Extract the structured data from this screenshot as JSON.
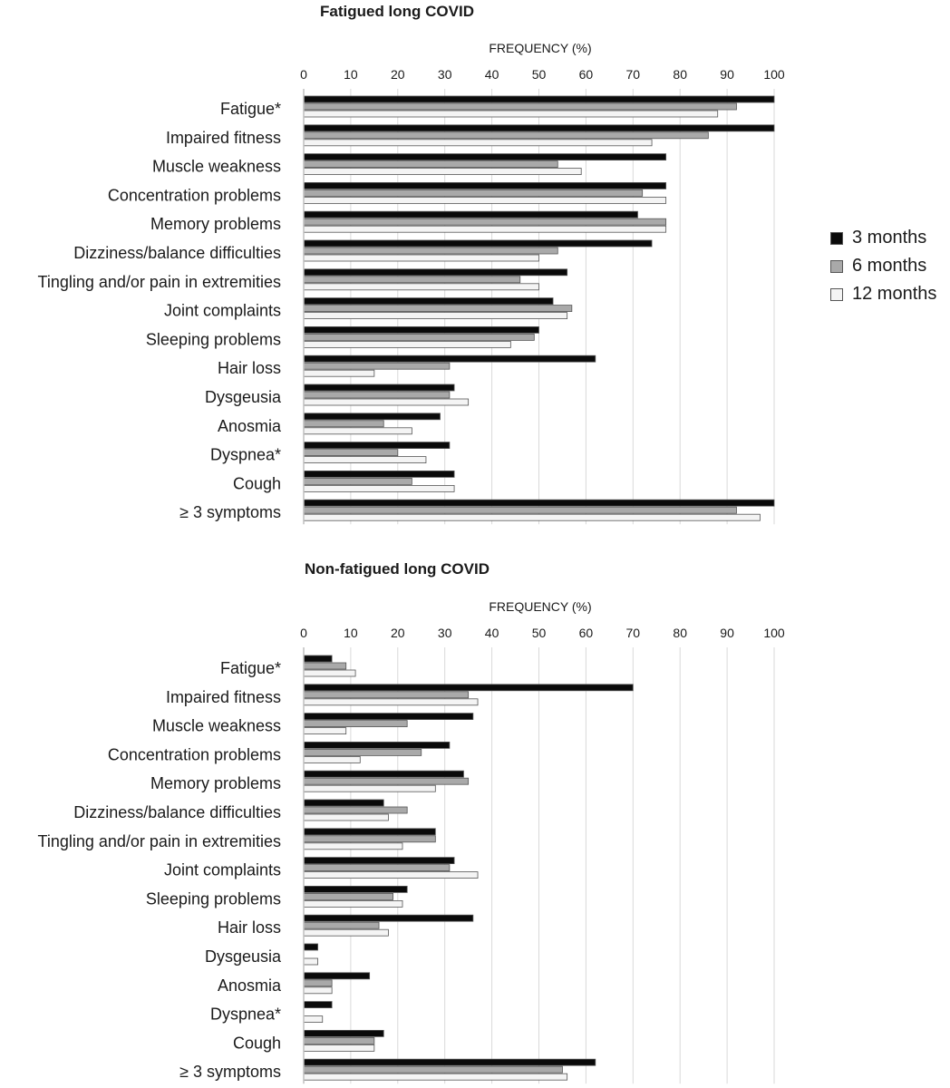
{
  "legend": {
    "entries": [
      "3 months",
      "6 months",
      "12 months"
    ]
  },
  "colors": {
    "3 months": "#0a0a0a",
    "6 months": "#a9a9a9",
    "12 months": "#f4f4f4",
    "bar_outline": "#555555",
    "grid": "#d9d9d9",
    "axis": "#bfbfbf",
    "text": "#1a1a1a"
  },
  "chart_data": [
    {
      "type": "bar",
      "orientation": "horizontal",
      "title": "Fatigued long COVID",
      "xlabel": "FREQUENCY (%)",
      "ylabel": "",
      "xlim": [
        0,
        100
      ],
      "xticks": [
        "0",
        "10",
        "20",
        "30",
        "40",
        "50",
        "60",
        "70",
        "80",
        "90",
        "100"
      ],
      "grid": "vertical",
      "legend_position": "right",
      "categories": [
        "Fatigue*",
        "Impaired fitness",
        "Muscle weakness",
        "Concentration problems",
        "Memory problems",
        "Dizziness/balance difficulties",
        "Tingling and/or pain in extremities",
        "Joint complaints",
        "Sleeping problems",
        "Hair loss",
        "Dysgeusia",
        "Anosmia",
        "Dyspnea*",
        "Cough",
        "≥ 3 symptoms"
      ],
      "series": [
        {
          "name": "3 months",
          "values": [
            100,
            100,
            77,
            77,
            71,
            74,
            56,
            53,
            50,
            62,
            32,
            29,
            31,
            32,
            100
          ]
        },
        {
          "name": "6 months",
          "values": [
            92,
            86,
            54,
            72,
            77,
            54,
            46,
            57,
            49,
            31,
            31,
            17,
            20,
            23,
            92
          ]
        },
        {
          "name": "12 months",
          "values": [
            88,
            74,
            59,
            77,
            77,
            50,
            50,
            56,
            44,
            15,
            35,
            23,
            26,
            32,
            97
          ]
        }
      ]
    },
    {
      "type": "bar",
      "orientation": "horizontal",
      "title": "Non-fatigued long COVID",
      "xlabel": "FREQUENCY (%)",
      "ylabel": "",
      "xlim": [
        0,
        100
      ],
      "xticks": [
        "0",
        "10",
        "20",
        "30",
        "40",
        "50",
        "60",
        "70",
        "80",
        "90",
        "100"
      ],
      "grid": "vertical",
      "legend_position": "none",
      "categories": [
        "Fatigue*",
        "Impaired fitness",
        "Muscle weakness",
        "Concentration problems",
        "Memory problems",
        "Dizziness/balance difficulties",
        "Tingling and/or pain in extremities",
        "Joint complaints",
        "Sleeping problems",
        "Hair loss",
        "Dysgeusia",
        "Anosmia",
        "Dyspnea*",
        "Cough",
        "≥ 3 symptoms"
      ],
      "series": [
        {
          "name": "3 months",
          "values": [
            6,
            70,
            36,
            31,
            34,
            17,
            28,
            32,
            22,
            36,
            3,
            14,
            6,
            17,
            62
          ]
        },
        {
          "name": "6 months",
          "values": [
            9,
            35,
            22,
            25,
            35,
            22,
            28,
            31,
            19,
            16,
            0,
            6,
            0,
            15,
            55
          ]
        },
        {
          "name": "12 months",
          "values": [
            11,
            37,
            9,
            12,
            28,
            18,
            21,
            37,
            21,
            18,
            3,
            6,
            4,
            15,
            56
          ]
        }
      ]
    }
  ]
}
